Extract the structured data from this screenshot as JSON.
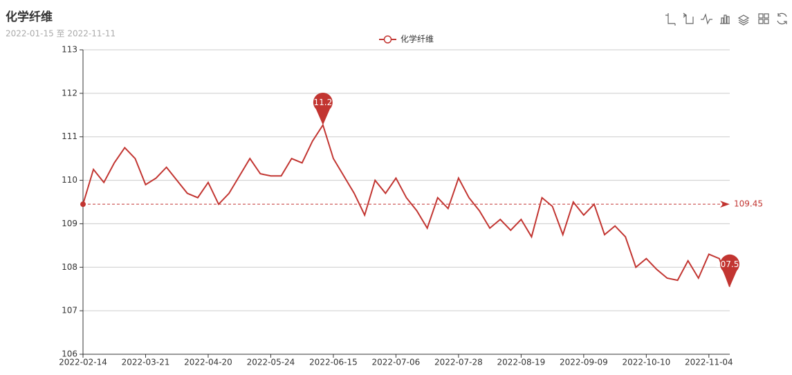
{
  "chart_data": {
    "type": "line",
    "title": "化学纤维",
    "subtitle": "2022-01-15 至 2022-11-11",
    "categories": [
      "2022-02-14",
      null,
      null,
      null,
      null,
      null,
      "2022-03-21",
      null,
      null,
      null,
      null,
      null,
      "2022-04-20",
      null,
      null,
      null,
      null,
      null,
      "2022-05-24",
      null,
      null,
      null,
      null,
      null,
      "2022-06-15",
      null,
      null,
      null,
      null,
      null,
      "2022-07-06",
      null,
      null,
      null,
      null,
      null,
      "2022-07-28",
      null,
      null,
      null,
      null,
      null,
      "2022-08-19",
      null,
      null,
      null,
      null,
      null,
      "2022-09-09",
      null,
      null,
      null,
      null,
      null,
      "2022-10-10",
      null,
      null,
      null,
      null,
      null,
      "2022-11-04",
      null,
      null
    ],
    "series": [
      {
        "name": "化学纤维",
        "color": "#c23531",
        "values": [
          109.45,
          110.25,
          109.95,
          110.4,
          110.75,
          110.5,
          109.9,
          110.05,
          110.3,
          110.0,
          109.7,
          109.6,
          109.95,
          109.45,
          109.7,
          110.1,
          110.5,
          110.15,
          110.1,
          110.1,
          110.5,
          110.4,
          110.9,
          111.27,
          110.5,
          110.1,
          109.7,
          109.2,
          110.0,
          109.7,
          110.05,
          109.6,
          109.3,
          108.9,
          109.6,
          109.35,
          110.05,
          109.6,
          109.3,
          108.9,
          109.1,
          108.85,
          109.1,
          108.7,
          109.6,
          109.4,
          108.75,
          109.5,
          109.2,
          109.45,
          108.75,
          108.95,
          108.7,
          108.0,
          108.2,
          107.95,
          107.75,
          107.7,
          108.15,
          107.75,
          108.3,
          108.2,
          107.55
        ]
      }
    ],
    "mark_line": {
      "value": 109.45
    },
    "ylim": [
      106,
      113
    ],
    "yticks": [
      106,
      107,
      108,
      109,
      110,
      111,
      112,
      113
    ],
    "grid": true
  }
}
